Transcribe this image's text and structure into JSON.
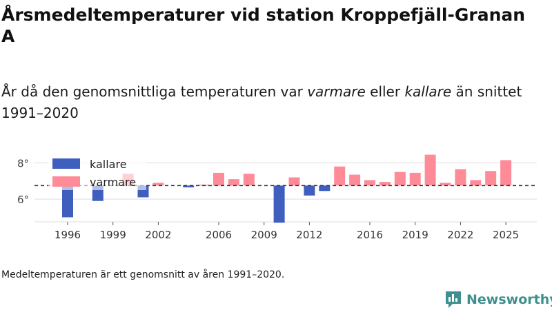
{
  "title": "Årsmedeltemperaturer vid station Kroppefjäll-Granan A",
  "subtitle": {
    "part1": "År då den genomsnittliga temperaturen var ",
    "warm_word": "varmare",
    "part2": " eller ",
    "cold_word": "kallare",
    "part3": " än snittet 1991–2020"
  },
  "footnote": "Medeltemperaturen är ett genomsnitt av åren 1991–2020.",
  "brand": "Newsworthy",
  "colors": {
    "colder": "#3f5fbf",
    "warmer": "#ff8a98",
    "grid": "#dddddd",
    "reference": "#333333",
    "brand": "#3f8f8f"
  },
  "chart_data": {
    "type": "bar",
    "baseline": 6.75,
    "baseline_style": "dashed",
    "ylim": [
      4.75,
      8.7
    ],
    "yticks": [
      6,
      8
    ],
    "ytick_labels": [
      "6°",
      "8°"
    ],
    "xticks": [
      1996,
      1999,
      2002,
      2006,
      2009,
      2012,
      2016,
      2019,
      2022,
      2025
    ],
    "legend": [
      {
        "key": "colder",
        "label": "kallare"
      },
      {
        "key": "warmer",
        "label": "varmare"
      }
    ],
    "legend_position": "top-left",
    "years": [
      1996,
      1998,
      2000,
      2001,
      2002,
      2004,
      2005,
      2006,
      2007,
      2008,
      2010,
      2011,
      2012,
      2013,
      2014,
      2015,
      2016,
      2017,
      2018,
      2019,
      2020,
      2021,
      2022,
      2023,
      2024,
      2025
    ],
    "values": [
      5.0,
      5.9,
      7.4,
      6.1,
      6.9,
      6.65,
      6.8,
      7.45,
      7.1,
      7.4,
      4.7,
      7.2,
      6.2,
      6.45,
      7.8,
      7.35,
      7.05,
      6.95,
      7.5,
      7.45,
      8.45,
      6.9,
      7.65,
      7.05,
      7.55,
      8.15
    ]
  }
}
